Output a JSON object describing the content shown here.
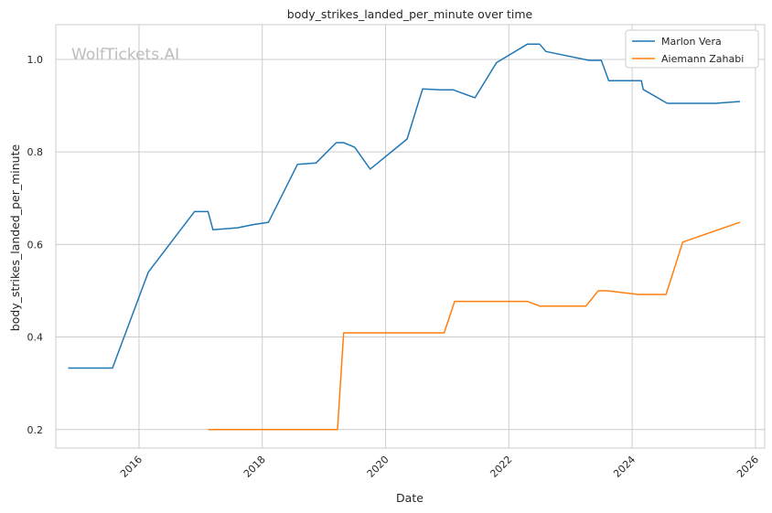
{
  "chart_data": {
    "type": "line",
    "title": "body_strikes_landed_per_minute over time",
    "xlabel": "Date",
    "ylabel": "body_strikes_landed_per_minute",
    "watermark": "WolfTickets.AI",
    "xlim": [
      2014.65,
      2026.15
    ],
    "ylim": [
      0.16,
      1.075
    ],
    "x_ticks": [
      2016,
      2018,
      2020,
      2022,
      2024,
      2026
    ],
    "x_tick_labels": [
      "2016",
      "2018",
      "2020",
      "2022",
      "2024",
      "2026"
    ],
    "y_ticks": [
      0.2,
      0.4,
      0.6,
      0.8,
      1.0
    ],
    "y_tick_labels": [
      "0.2",
      "0.4",
      "0.6",
      "0.8",
      "1.0"
    ],
    "grid": true,
    "legend_position": "top-right",
    "series": [
      {
        "name": "Marlon Vera",
        "color": "#1f77b4",
        "points": [
          [
            2014.85,
            0.333
          ],
          [
            2015.57,
            0.333
          ],
          [
            2016.15,
            0.54
          ],
          [
            2016.9,
            0.671
          ],
          [
            2017.12,
            0.671
          ],
          [
            2017.2,
            0.632
          ],
          [
            2017.6,
            0.636
          ],
          [
            2017.85,
            0.643
          ],
          [
            2018.1,
            0.648
          ],
          [
            2018.57,
            0.773
          ],
          [
            2018.87,
            0.776
          ],
          [
            2019.2,
            0.82
          ],
          [
            2019.32,
            0.82
          ],
          [
            2019.5,
            0.81
          ],
          [
            2019.75,
            0.763
          ],
          [
            2020.35,
            0.828
          ],
          [
            2020.6,
            0.936
          ],
          [
            2020.9,
            0.934
          ],
          [
            2021.1,
            0.934
          ],
          [
            2021.45,
            0.917
          ],
          [
            2021.8,
            0.993
          ],
          [
            2022.3,
            1.033
          ],
          [
            2022.5,
            1.033
          ],
          [
            2022.6,
            1.017
          ],
          [
            2023.3,
            0.998
          ],
          [
            2023.5,
            0.998
          ],
          [
            2023.62,
            0.954
          ],
          [
            2024.15,
            0.954
          ],
          [
            2024.18,
            0.935
          ],
          [
            2024.57,
            0.905
          ],
          [
            2025.35,
            0.905
          ],
          [
            2025.75,
            0.909
          ]
        ]
      },
      {
        "name": "Aiemann Zahabi",
        "color": "#ff7f0e",
        "points": [
          [
            2017.12,
            0.2
          ],
          [
            2019.22,
            0.2
          ],
          [
            2019.32,
            0.409
          ],
          [
            2020.95,
            0.409
          ],
          [
            2021.12,
            0.477
          ],
          [
            2022.3,
            0.477
          ],
          [
            2022.5,
            0.467
          ],
          [
            2023.25,
            0.467
          ],
          [
            2023.45,
            0.5
          ],
          [
            2023.6,
            0.5
          ],
          [
            2024.1,
            0.492
          ],
          [
            2024.55,
            0.492
          ],
          [
            2024.82,
            0.605
          ],
          [
            2025.25,
            0.625
          ],
          [
            2025.75,
            0.648
          ]
        ]
      }
    ]
  }
}
